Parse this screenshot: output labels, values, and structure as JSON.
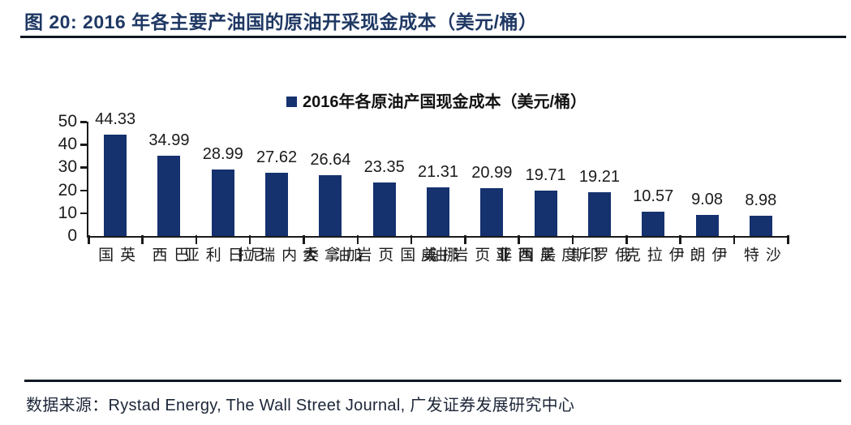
{
  "figure": {
    "title": "图 20:  2016 年各主要产油国的原油开采现金成本（美元/桶）",
    "source": "数据来源：Rystad Energy, The Wall Street Journal,  广发证券发展研究中心"
  },
  "chart_data": {
    "type": "bar",
    "title": "2016 年各主要产油国的原油开采现金成本（美元/桶）",
    "legend": "2016年各原油产国现金成本（美元/桶）",
    "legend_position": "top-center",
    "categories": [
      "英国",
      "巴西",
      "尼日利亚",
      "委内瑞拉",
      "加拿大",
      "美国页岩油",
      "挪威",
      "美国非页岩油",
      "印度尼西亚",
      "俄罗斯",
      "伊拉克",
      "伊朗",
      "沙特"
    ],
    "values": [
      44.33,
      34.99,
      28.99,
      27.62,
      26.64,
      23.35,
      21.31,
      20.99,
      19.71,
      19.21,
      10.57,
      9.08,
      8.98
    ],
    "xlabel": "",
    "ylabel": "",
    "ylim": [
      0,
      50
    ],
    "yticks": [
      0,
      10,
      20,
      30,
      40,
      50
    ],
    "grid": false,
    "bar_color": "#15316e",
    "axis_color": "#1a1a1a",
    "title_color": "#1f3864"
  }
}
